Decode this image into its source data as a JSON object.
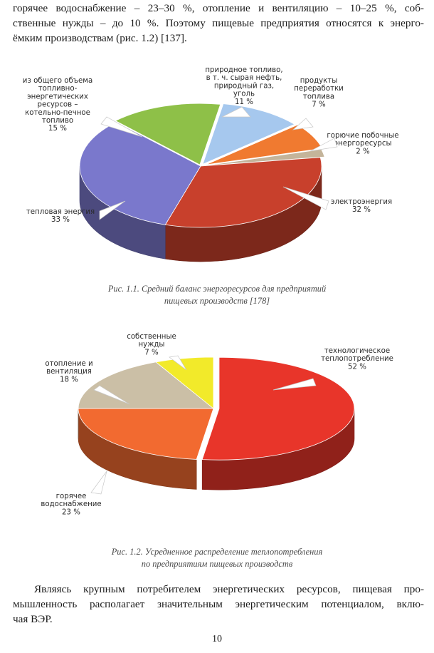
{
  "text": {
    "top_paragraph": [
      "горячее водоснабжение – 23–30 %, отопление и вентиляцию – 10–25 %, соб-",
      "ственные нужды – до 10 %. Поэтому пищевые предприятия относятся к энерго-",
      "ёмким производствам (рис. 1.2) [137]."
    ],
    "bottom_paragraph": [
      "Являясь крупным потребителем энергетических ресурсов, пищевая про-",
      "мышленность располагает значительным энергетическим потенциалом, вклю-",
      "чая ВЭР."
    ],
    "page_number": "10"
  },
  "figure1": {
    "caption": [
      "Рис. 1.1. Средний баланс энергоресурсов для предприятий",
      "пищевых производств [178]"
    ],
    "chart_data": {
      "type": "pie",
      "labels": [
        "природное топливо, в т. ч. сырая нефть, природный газ, уголь",
        "продукты переработки топлива",
        "горючие побочные энергоресурсы",
        "электроэнергия",
        "тепловая энергия",
        "из общего объема топливно-энергетических ресурсов – котельно-печное топливо"
      ],
      "values": [
        11,
        7,
        2,
        32,
        33,
        15
      ],
      "colors": [
        "#a6c8ee",
        "#f07a30",
        "#c4b49a",
        "#c8402c",
        "#7a78cc",
        "#8ec048"
      ],
      "label_lines": [
        [
          "природное топливо,",
          "в т. ч. сырая нефть,",
          "природный газ,",
          "уголь",
          "11 %"
        ],
        [
          "продукты",
          "переработки",
          "топлива",
          "7 %"
        ],
        [
          "горючие побочные",
          "энергоресурсы",
          "2 %"
        ],
        [
          "электроэнергия",
          "32 %"
        ],
        [
          "тепловая энергия",
          "33 %"
        ],
        [
          "из общего объема",
          "топливно-",
          "энергетических",
          "ресурсов –",
          "котельно-печное",
          "топливо",
          "15 %"
        ]
      ]
    }
  },
  "figure2": {
    "caption": [
      "Рис. 1.2. Усредненное распределение теплопотребления",
      "по предприятиям пищевых производств"
    ],
    "chart_data": {
      "type": "pie",
      "labels": [
        "технологическое теплопотребление",
        "горячее водоснабжение",
        "отопление и вентиляция",
        "собственные нужды"
      ],
      "values": [
        52,
        23,
        18,
        7
      ],
      "colors": [
        "#e8352a",
        "#f26a30",
        "#cbbfa6",
        "#f2ea2a"
      ],
      "label_lines": [
        [
          "технологическое",
          "теплопотребление",
          "52 %"
        ],
        [
          "горячее",
          "водоснабжение",
          "23 %"
        ],
        [
          "отопление и",
          "вентиляция",
          "18 %"
        ],
        [
          "собственные",
          "нужды",
          "7 %"
        ]
      ]
    }
  }
}
